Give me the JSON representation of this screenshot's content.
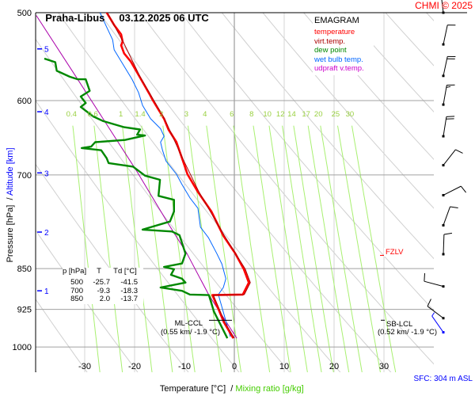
{
  "header": {
    "station": "Praha-Libus",
    "datetime": "03.12.2025 06 UTC",
    "copyright": "CHMI © 2025"
  },
  "legend": {
    "title": "EMAGRAM",
    "items": [
      {
        "label": "temperature",
        "color": "#ff0000"
      },
      {
        "label": "virt.temp.",
        "color": "#aa0000"
      },
      {
        "label": "dew point",
        "color": "#008800"
      },
      {
        "label": "wet bulb temp.",
        "color": "#0066ff"
      },
      {
        "label": "udpraft v.temp.",
        "color": "#aa00aa"
      }
    ]
  },
  "table": {
    "headers": [
      "p [hPa]",
      "T",
      "Td [°C]"
    ],
    "rows": [
      [
        "500",
        "-25.7",
        "-41.5"
      ],
      [
        "700",
        "-9.3",
        "-18.3"
      ],
      [
        "850",
        "2.0",
        "-13.7"
      ]
    ]
  },
  "annotations": {
    "fzlv": "FZLV",
    "ml_ccl": "ML-CCL",
    "ml_ccl_values": "(0.55 km/ -1.9 °C)",
    "sb_lcl": "SB-LCL",
    "sb_lcl_values": "(0.52 km/ -1.9 °C)",
    "sfc": "SFC: 304 m ASL"
  },
  "axes": {
    "y_title_pressure": "Pressure [hPa]  /",
    "y_title_altitude": "Altitude [km]",
    "x_title_temp": "Temperature [°C]  /",
    "x_title_mix": "Mixing ratio [g/kg]"
  },
  "chart_data": {
    "type": "line",
    "title": "EMAGRAM",
    "xlabel": "Temperature [°C] / Mixing ratio [g/kg]",
    "ylabel": "Pressure [hPa] / Altitude [km]",
    "xlim": [
      -40,
      40
    ],
    "ylim": [
      1054,
      500
    ],
    "y_scale": "log",
    "pressure_ticks": [
      500,
      600,
      700,
      850,
      925,
      1000
    ],
    "temp_ticks": [
      -30,
      -20,
      -10,
      0,
      10,
      20,
      30
    ],
    "altitude_ticks": [
      {
        "km": "5",
        "p": 539
      },
      {
        "km": "4",
        "p": 614
      },
      {
        "km": "3",
        "p": 697
      },
      {
        "km": "2",
        "p": 788
      },
      {
        "km": "1",
        "p": 890
      }
    ],
    "mixing_ratio_labels": [
      "0.4",
      "0.6",
      "1",
      "1.4",
      "2",
      "3",
      "4",
      "6",
      "8",
      "10",
      "12",
      "14",
      "17",
      "20",
      "25",
      "30"
    ],
    "fzlv_p": 827,
    "ml_ccl_p": 946,
    "sb_lcl_p": 946,
    "series": [
      {
        "name": "temperature",
        "color": "#ff0000",
        "points": [
          [
            499,
            -25.7
          ],
          [
            513,
            -24.1
          ],
          [
            523,
            -22.7
          ],
          [
            531,
            -22.4
          ],
          [
            535,
            -22.7
          ],
          [
            544,
            -22.1
          ],
          [
            553,
            -20.8
          ],
          [
            571,
            -19.0
          ],
          [
            591,
            -17.1
          ],
          [
            600,
            -16.3
          ],
          [
            623,
            -14.1
          ],
          [
            637,
            -13.2
          ],
          [
            654,
            -11.6
          ],
          [
            676,
            -10.5
          ],
          [
            699,
            -9.4
          ],
          [
            725,
            -7.3
          ],
          [
            755,
            -4.6
          ],
          [
            794,
            -2.2
          ],
          [
            824,
            0.2
          ],
          [
            851,
            1.9
          ],
          [
            875,
            2.9
          ],
          [
            897,
            1.7
          ],
          [
            898,
            -4.4
          ],
          [
            924,
            -3.2
          ],
          [
            950,
            -2.1
          ],
          [
            982,
            -0.2
          ]
        ]
      },
      {
        "name": "virt.temp.",
        "color": "#aa0000",
        "points": [
          [
            499,
            -25.6
          ],
          [
            531,
            -22.3
          ],
          [
            571,
            -18.9
          ],
          [
            623,
            -14.0
          ],
          [
            676,
            -10.4
          ],
          [
            725,
            -7.1
          ],
          [
            794,
            -2.0
          ],
          [
            851,
            2.2
          ],
          [
            875,
            3.2
          ],
          [
            897,
            2.0
          ],
          [
            898,
            -4.2
          ],
          [
            950,
            -1.9
          ],
          [
            982,
            0.0
          ]
        ]
      },
      {
        "name": "dew point",
        "color": "#008800",
        "points": [
          [
            550,
            -38.1
          ],
          [
            554,
            -35.9
          ],
          [
            564,
            -35.6
          ],
          [
            571,
            -33.0
          ],
          [
            574,
            -31.4
          ],
          [
            574,
            -29.8
          ],
          [
            588,
            -29.0
          ],
          [
            595,
            -30.8
          ],
          [
            603,
            -29.8
          ],
          [
            608,
            -30.8
          ],
          [
            620,
            -28.3
          ],
          [
            626,
            -26.3
          ],
          [
            634,
            -22.1
          ],
          [
            637,
            -18.9
          ],
          [
            644,
            -19.5
          ],
          [
            645,
            -17.9
          ],
          [
            651,
            -21.9
          ],
          [
            654,
            -27.9
          ],
          [
            660,
            -28.7
          ],
          [
            662,
            -30.6
          ],
          [
            665,
            -26.7
          ],
          [
            676,
            -25.6
          ],
          [
            683,
            -25.2
          ],
          [
            688,
            -20.3
          ],
          [
            701,
            -17.9
          ],
          [
            707,
            -14.9
          ],
          [
            731,
            -15.2
          ],
          [
            737,
            -12.1
          ],
          [
            755,
            -12.1
          ],
          [
            771,
            -12.9
          ],
          [
            784,
            -18.4
          ],
          [
            787,
            -12.5
          ],
          [
            793,
            -11.0
          ],
          [
            824,
            -9.8
          ],
          [
            841,
            -10.5
          ],
          [
            847,
            -14.1
          ],
          [
            851,
            -12.1
          ],
          [
            861,
            -12.7
          ],
          [
            868,
            -10.5
          ],
          [
            875,
            -9.8
          ],
          [
            884,
            -14.8
          ],
          [
            890,
            -10.5
          ],
          [
            897,
            -8.9
          ],
          [
            898,
            -5.1
          ],
          [
            929,
            -4.1
          ],
          [
            982,
            -1.4
          ]
        ]
      },
      {
        "name": "wet bulb temp.",
        "color": "#0066ff",
        "points": [
          [
            499,
            -27.0
          ],
          [
            514,
            -25.7
          ],
          [
            529,
            -24.4
          ],
          [
            540,
            -24.1
          ],
          [
            553,
            -22.7
          ],
          [
            574,
            -20.5
          ],
          [
            590,
            -19.2
          ],
          [
            606,
            -18.4
          ],
          [
            623,
            -16.8
          ],
          [
            636,
            -14.8
          ],
          [
            646,
            -14.1
          ],
          [
            654,
            -14.8
          ],
          [
            665,
            -14.4
          ],
          [
            680,
            -13.7
          ],
          [
            699,
            -11.6
          ],
          [
            714,
            -10.5
          ],
          [
            734,
            -8.9
          ],
          [
            750,
            -7.3
          ],
          [
            780,
            -6.8
          ],
          [
            797,
            -5.2
          ],
          [
            824,
            -3.5
          ],
          [
            842,
            -2.5
          ],
          [
            868,
            -1.7
          ],
          [
            884,
            -2.2
          ],
          [
            897,
            -3.2
          ],
          [
            979,
            -0.8
          ]
        ]
      },
      {
        "name": "udpraft v.temp.",
        "color": "#aa00aa",
        "points": [
          [
            503,
            -39.7
          ],
          [
            577,
            -31.1
          ],
          [
            693,
            -19.7
          ],
          [
            775,
            -13.2
          ],
          [
            824,
            -9.5
          ],
          [
            898,
            -5.1
          ],
          [
            982,
            0.5
          ]
        ]
      }
    ],
    "wind": [
      {
        "p": 500,
        "dir": 173,
        "kt": 15
      },
      {
        "p": 534,
        "dir": 192,
        "kt": 10
      },
      {
        "p": 570,
        "dir": 192,
        "kt": 20
      },
      {
        "p": 605,
        "dir": 190,
        "kt": 15
      },
      {
        "p": 646,
        "dir": 189,
        "kt": 20
      },
      {
        "p": 686,
        "dir": 218,
        "kt": 10
      },
      {
        "p": 730,
        "dir": 243,
        "kt": 10
      },
      {
        "p": 777,
        "dir": 200,
        "kt": 10
      },
      {
        "p": 825,
        "dir": 182,
        "kt": 10
      },
      {
        "p": 882,
        "dir": 105,
        "kt": 10
      },
      {
        "p": 942,
        "dir": 127,
        "kt": 10
      },
      {
        "p": 970,
        "dir": 145,
        "kt": 5,
        "surface": true
      }
    ]
  }
}
